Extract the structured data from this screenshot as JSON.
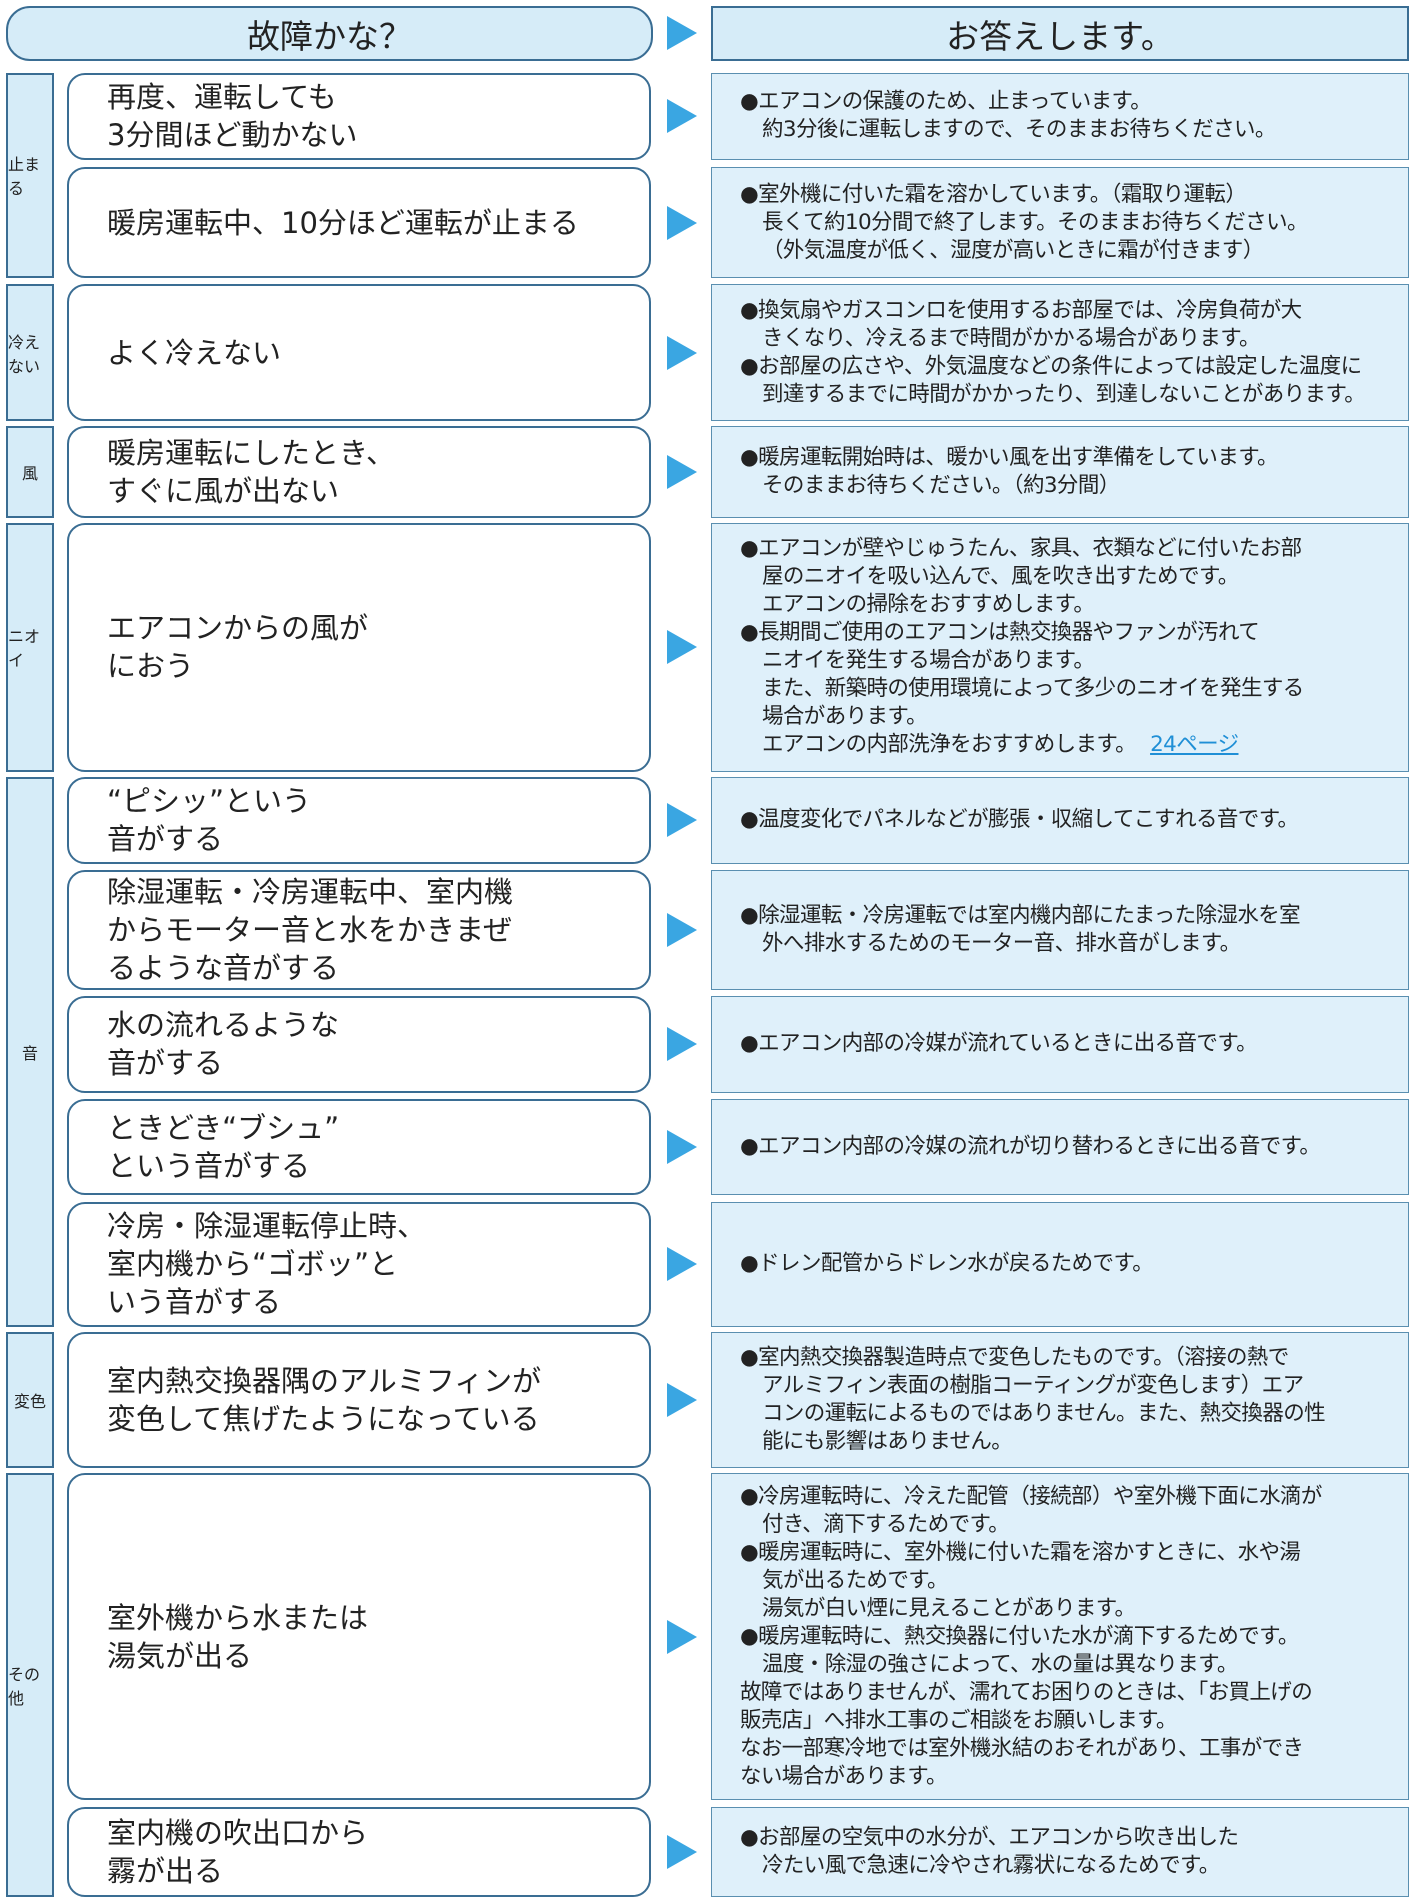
{
  "header": {
    "left": "故障かな？",
    "right": "お答えします。"
  },
  "groups": [
    {
      "label": "止まる",
      "rows": [
        {
          "problem": [
            "再度、運転しても",
            "3分間ほど動かない"
          ],
          "answer": [
            "●エアコンの保護のため、止まっています。",
            "約3分後に運転しますので、そのままお待ちください。"
          ]
        },
        {
          "problem": [
            "暖房運転中、10分ほど運転が止まる"
          ],
          "answer": [
            "●室外機に付いた霜を溶かしています。（霜取り運転）",
            "長くて約10分間で終了します。そのままお待ちください。",
            "（外気温度が低く、湿度が高いときに霜が付きます）"
          ]
        }
      ]
    },
    {
      "label": "冷えない",
      "rows": [
        {
          "problem": [
            "よく冷えない"
          ],
          "answer": [
            "●換気扇やガスコンロを使用するお部屋では、冷房負荷が大",
            "きくなり、冷えるまで時間がかかる場合があります。",
            "●お部屋の広さや、外気温度などの条件によっては設定した温度に",
            "到達するまでに時間がかかったり、到達しないことがあります。"
          ]
        }
      ]
    },
    {
      "label": "風",
      "rows": [
        {
          "problem": [
            "暖房運転にしたとき、",
            "すぐに風が出ない"
          ],
          "answer": [
            "●暖房運転開始時は、暖かい風を出す準備をしています。",
            "そのままお待ちください。（約3分間）"
          ]
        }
      ]
    },
    {
      "label": "ニオイ",
      "rows": [
        {
          "problem": [
            "エアコンからの風が",
            "におう"
          ],
          "answer": [
            "●エアコンが壁やじゅうたん、家具、衣類などに付いたお部",
            "屋のニオイを吸い込んで、風を吹き出すためです。",
            "エアコンの掃除をおすすめします。",
            "●長期間ご使用のエアコンは熱交換器やファンが汚れて",
            "ニオイを発生する場合があります。",
            "また、新築時の使用環境によって多少のニオイを発生する",
            "場合があります。",
            "エアコンの内部洗浄をおすすめします。"
          ],
          "link": "24ページ"
        }
      ]
    },
    {
      "label": "音",
      "rows": [
        {
          "problem": [
            "“ピシッ”という",
            "音がする"
          ],
          "answer": [
            "●温度変化でパネルなどが膨張・収縮してこすれる音です。"
          ]
        },
        {
          "problem": [
            "除湿運転・冷房運転中、室内機",
            "からモーター音と水をかきまぜ",
            "るような音がする"
          ],
          "answer": [
            "●除湿運転・冷房運転では室内機内部にたまった除湿水を室",
            "外へ排水するためのモーター音、排水音がします。"
          ]
        },
        {
          "problem": [
            "水の流れるような",
            "音がする"
          ],
          "answer": [
            "●エアコン内部の冷媒が流れているときに出る音です。"
          ]
        },
        {
          "problem": [
            "ときどき“ブシュ”",
            "という音がする"
          ],
          "answer": [
            "●エアコン内部の冷媒の流れが切り替わるときに出る音です。"
          ]
        },
        {
          "problem": [
            "冷房・除湿運転停止時、",
            "室内機から“ゴボッ”と",
            "いう音がする"
          ],
          "answer": [
            "●ドレン配管からドレン水が戻るためです。"
          ]
        }
      ]
    },
    {
      "label": "変色",
      "rows": [
        {
          "problem": [
            "室内熱交換器隅のアルミフィンが",
            "変色して焦げたようになっている"
          ],
          "answer": [
            "●室内熱交換器製造時点で変色したものです。（溶接の熱で",
            "アルミフィン表面の樹脂コーティングが変色します）エア",
            "コンの運転によるものではありません。また、熱交換器の性",
            "能にも影響はありません。"
          ]
        }
      ]
    },
    {
      "label": "その他",
      "rows": [
        {
          "problem": [
            "室外機から水または",
            "湯気が出る"
          ],
          "answer": [
            "●冷房運転時に、冷えた配管（接続部）や室外機下面に水滴が",
            "付き、滴下するためです。",
            "●暖房運転時に、室外機に付いた霜を溶かすときに、水や湯",
            "気が出るためです。",
            "湯気が白い煙に見えることがあります。",
            "●暖房運転時に、熱交換器に付いた水が滴下するためです。",
            "温度・除湿の強さによって、水の量は異なります。",
            "故障ではありませんが、濡れてお困りのときは、「お買上げの",
            "販売店」へ排水工事のご相談をお願いします。",
            "なお一部寒冷地では室外機氷結のおそれがあり、工事ができ",
            "ない場合があります。"
          ]
        },
        {
          "problem": [
            "室内機の吹出口から",
            "霧が出る"
          ],
          "answer": [
            "●お部屋の空気中の水分が、エアコンから吹き出した",
            "冷たい風で急速に冷やされ霧状になるためです。"
          ]
        }
      ]
    }
  ]
}
